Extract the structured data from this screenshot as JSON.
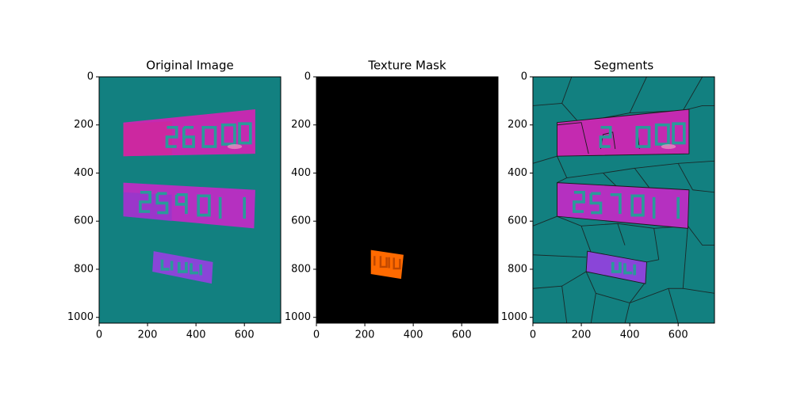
{
  "chart_data": [
    {
      "type": "image",
      "title": "Original Image",
      "xlim": [
        0,
        750
      ],
      "ylim": [
        1024,
        0
      ],
      "xticks": [
        0,
        200,
        400,
        600
      ],
      "yticks": [
        0,
        200,
        400,
        600,
        800,
        1000
      ]
    },
    {
      "type": "image",
      "title": "Texture Mask",
      "xlim": [
        0,
        750
      ],
      "ylim": [
        1024,
        0
      ],
      "xticks": [
        0,
        200,
        400,
        600
      ],
      "yticks": [
        0,
        200,
        400,
        600,
        800,
        1000
      ]
    },
    {
      "type": "image",
      "title": "Segments",
      "xlim": [
        0,
        750
      ],
      "ylim": [
        1024,
        0
      ],
      "xticks": [
        0,
        200,
        400,
        600
      ],
      "yticks": [
        0,
        200,
        400,
        600,
        800,
        1000
      ]
    }
  ]
}
